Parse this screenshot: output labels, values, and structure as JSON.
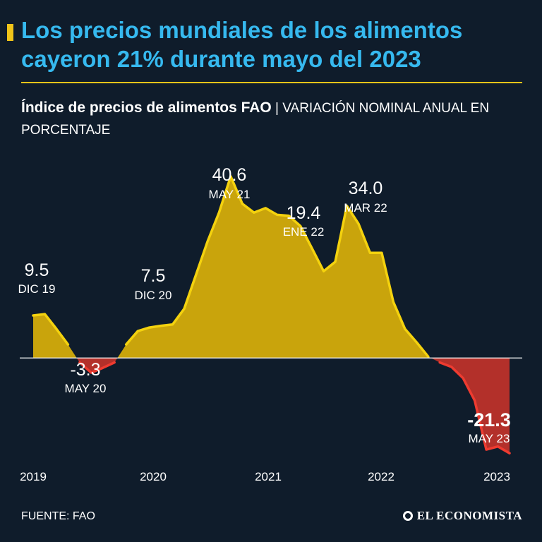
{
  "header": {
    "title": "Los precios mundiales de los alimentos cayeron 21% durante mayo del 2023",
    "subtitle_bold": "Índice de precios de alimentos FAO",
    "subtitle_separator": " | ",
    "subtitle_light": "VARIACIÓN NOMINAL ANUAL EN PORCENTAJE"
  },
  "footer": {
    "source": "FUENTE: FAO",
    "brand": "EL ECONOMISTA"
  },
  "colors": {
    "background": "#0f1c2b",
    "title": "#36b9ef",
    "accent": "#f0c419",
    "positive_fill": "#c9a40c",
    "positive_line": "#f4d20e",
    "negative_fill": "#b3302a",
    "negative_line": "#ee3b30"
  },
  "chart_data": {
    "type": "area",
    "title": "Índice de precios de alimentos FAO",
    "ylabel": "Variación nominal anual en porcentaje",
    "xlabel": "",
    "ylim": [
      -26,
      48
    ],
    "x_tick_labels": [
      "2019",
      "2020",
      "2021",
      "2022",
      "2023"
    ],
    "series": [
      {
        "name": "Índice de precios de alimentos FAO",
        "x": [
          "Dic 19",
          "Ene 20",
          "Feb 20",
          "Mar 20",
          "Abr 20",
          "May 20",
          "Jun 20",
          "Jul 20",
          "Ago 20",
          "Sep 20",
          "Oct 20",
          "Nov 20",
          "Dic 20",
          "Ene 21",
          "Feb 21",
          "Mar 21",
          "Abr 21",
          "May 21",
          "Jun 21",
          "Jul 21",
          "Ago 21",
          "Sep 21",
          "Oct 21",
          "Nov 21",
          "Dic 21",
          "Ene 22",
          "Feb 22",
          "Mar 22",
          "Abr 22",
          "May 22",
          "Jun 22",
          "Jul 22",
          "Ago 22",
          "Sep 22",
          "Oct 22",
          "Nov 22",
          "Dic 22",
          "Ene 23",
          "Feb 23",
          "Mar 23",
          "Abr 23",
          "May 23"
        ],
        "values": [
          9.5,
          9.8,
          6.5,
          3.0,
          -1.0,
          -3.3,
          -2.2,
          -1.0,
          3.0,
          6.0,
          6.8,
          7.2,
          7.5,
          11.0,
          18.5,
          26.0,
          32.5,
          40.6,
          34.5,
          32.5,
          33.5,
          32.0,
          31.8,
          29.5,
          24.5,
          19.4,
          21.5,
          34.0,
          30.0,
          23.5,
          23.5,
          12.5,
          6.5,
          3.5,
          0.3,
          -1.0,
          -2.0,
          -4.5,
          -9.5,
          -20.5,
          -19.8,
          -21.3
        ]
      }
    ],
    "annotations": [
      {
        "value": "9.5",
        "label": "DIC 19",
        "index": 0
      },
      {
        "value": "-3.3",
        "label": "MAY 20",
        "index": 5
      },
      {
        "value": "7.5",
        "label": "DIC 20",
        "index": 12
      },
      {
        "value": "40.6",
        "label": "MAY 21",
        "index": 17
      },
      {
        "value": "19.4",
        "label": "ENE 22",
        "index": 25
      },
      {
        "value": "34.0",
        "label": "MAR 22",
        "index": 27
      },
      {
        "value": "-21.3",
        "label": "MAY 23",
        "index": 41
      }
    ]
  }
}
